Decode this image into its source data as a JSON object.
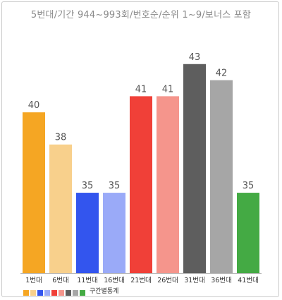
{
  "title": "5번대/기간 944~993회/번호순/순위 1~9/보너스 포함",
  "chart_data": {
    "type": "bar",
    "categories": [
      "1번대",
      "6번대",
      "11번대",
      "16번대",
      "21번대",
      "26번대",
      "31번대",
      "36번대",
      "41번대"
    ],
    "values": [
      40,
      38,
      35,
      35,
      41,
      41,
      43,
      42,
      35
    ],
    "colors": [
      "#f5a623",
      "#f8d08c",
      "#3355ee",
      "#9aaaf8",
      "#f04038",
      "#f5958c",
      "#5e5e5e",
      "#a6a6a6",
      "#44aa44"
    ],
    "ylim": [
      30,
      44
    ],
    "grid": false,
    "legend": {
      "label": "구간별통계",
      "position": "bottom-left",
      "swatch_colors": [
        "#f5a623",
        "#f8d08c",
        "#3355ee",
        "#9aaaf8",
        "#f04038",
        "#f5958c",
        "#5e5e5e",
        "#a6a6a6",
        "#44aa44"
      ]
    }
  }
}
